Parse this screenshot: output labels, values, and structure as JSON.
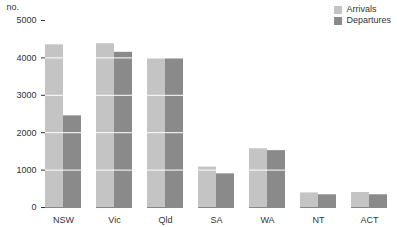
{
  "chart_data": {
    "type": "bar",
    "categories": [
      "NSW",
      "Vic",
      "Qld",
      "SA",
      "WA",
      "NT",
      "ACT"
    ],
    "series": [
      {
        "name": "Arrivals",
        "color": "#c4c4c4",
        "values": [
          4350,
          4380,
          3980,
          1080,
          1570,
          390,
          400
        ]
      },
      {
        "name": "Departures",
        "color": "#8a8a8a",
        "values": [
          2450,
          4150,
          3980,
          900,
          1520,
          340,
          340
        ]
      }
    ],
    "y_label": "no.",
    "ylim": [
      0,
      5000
    ],
    "yticks": [
      0,
      1000,
      2000,
      3000,
      4000,
      5000
    ],
    "grid": true,
    "legend": "top-right"
  }
}
